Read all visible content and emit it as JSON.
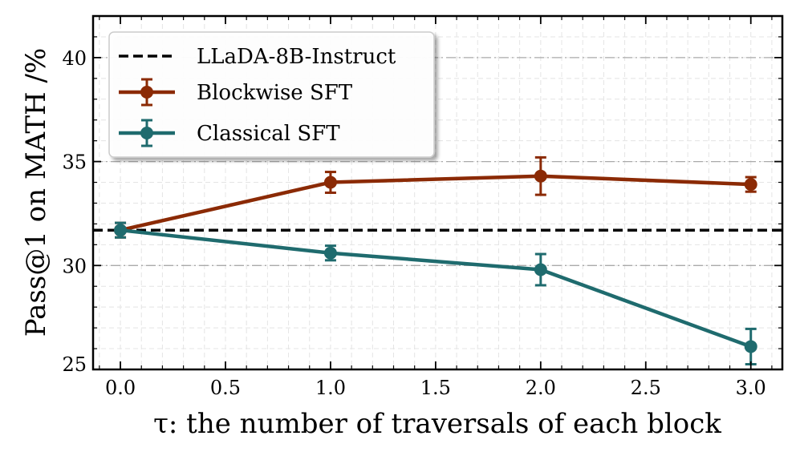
{
  "chart_data": {
    "type": "line",
    "title": "",
    "xlabel": "τ: the number of traversals of each block",
    "ylabel": "Pass@1 on MATH /%",
    "xlim": [
      -0.13,
      3.15
    ],
    "ylim": [
      25,
      42
    ],
    "xticks": [
      0.0,
      0.5,
      1.0,
      1.5,
      2.0,
      2.5,
      3.0
    ],
    "xtick_labels": [
      "0.0",
      "0.5",
      "1.0",
      "1.5",
      "2.0",
      "2.5",
      "3.0"
    ],
    "yticks": [
      25,
      30,
      35,
      40
    ],
    "ytick_labels": [
      "25",
      "30",
      "35",
      "40"
    ],
    "grid": true,
    "legend_position": "top-left",
    "baseline": {
      "name": "LLaDA-8B-Instruct",
      "value": 31.7,
      "color": "#000000"
    },
    "series": [
      {
        "name": "Blockwise SFT",
        "color": "#8B2A05",
        "x": [
          0.0,
          1.0,
          2.0,
          3.0
        ],
        "y": [
          31.7,
          34.0,
          34.3,
          33.9
        ],
        "err": [
          0.35,
          0.5,
          0.9,
          0.35
        ]
      },
      {
        "name": "Classical SFT",
        "color": "#1F6B6E",
        "x": [
          0.0,
          1.0,
          2.0,
          3.0
        ],
        "y": [
          31.7,
          30.6,
          29.8,
          26.1
        ],
        "err": [
          0.35,
          0.35,
          0.75,
          0.85
        ]
      }
    ]
  }
}
